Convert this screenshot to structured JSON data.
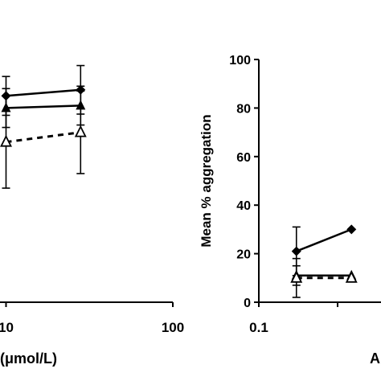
{
  "chart_data": [
    {
      "type": "line",
      "xscale": "log",
      "xlim": [
        1,
        100
      ],
      "ylim": [
        0,
        100
      ],
      "x_ticks": [
        "10",
        "100"
      ],
      "xlabel": "(μmol/L)",
      "series": [
        {
          "marker": "diamond-filled",
          "line": "solid",
          "points": [
            {
              "x": 10,
              "y": 85,
              "err": 8
            },
            {
              "x": 28,
              "y": 87.5,
              "err": 10
            }
          ]
        },
        {
          "marker": "triangle-filled",
          "line": "solid",
          "points": [
            {
              "x": 10,
              "y": 80,
              "err": 8
            },
            {
              "x": 28,
              "y": 81,
              "err": 8
            }
          ]
        },
        {
          "marker": "triangle-open",
          "line": "dashed",
          "points": [
            {
              "x": 10,
              "y": 66,
              "err": 19
            },
            {
              "x": 28,
              "y": 70,
              "err": 17
            }
          ]
        }
      ]
    },
    {
      "type": "line",
      "xscale": "log",
      "xlim": [
        0.1,
        10
      ],
      "ylim": [
        0,
        100
      ],
      "y_ticks": [
        "0",
        "20",
        "40",
        "60",
        "80",
        "100"
      ],
      "x_ticks": [
        "0.1"
      ],
      "ylabel": "Mean % aggregation",
      "xlabel_visible_fragment": "A",
      "series": [
        {
          "marker": "diamond-filled",
          "line": "solid",
          "points": [
            {
              "x": 0.3,
              "y": 21,
              "err": 10
            },
            {
              "x": 1.5,
              "y": 30
            }
          ]
        },
        {
          "marker": "triangle-filled",
          "line": "solid",
          "points": [
            {
              "x": 0.3,
              "y": 11,
              "err": 4
            },
            {
              "x": 1.5,
              "y": 11
            }
          ]
        },
        {
          "marker": "triangle-open",
          "line": "dashed",
          "points": [
            {
              "x": 0.3,
              "y": 10,
              "err": 8
            },
            {
              "x": 1.5,
              "y": 10
            }
          ]
        }
      ]
    }
  ]
}
